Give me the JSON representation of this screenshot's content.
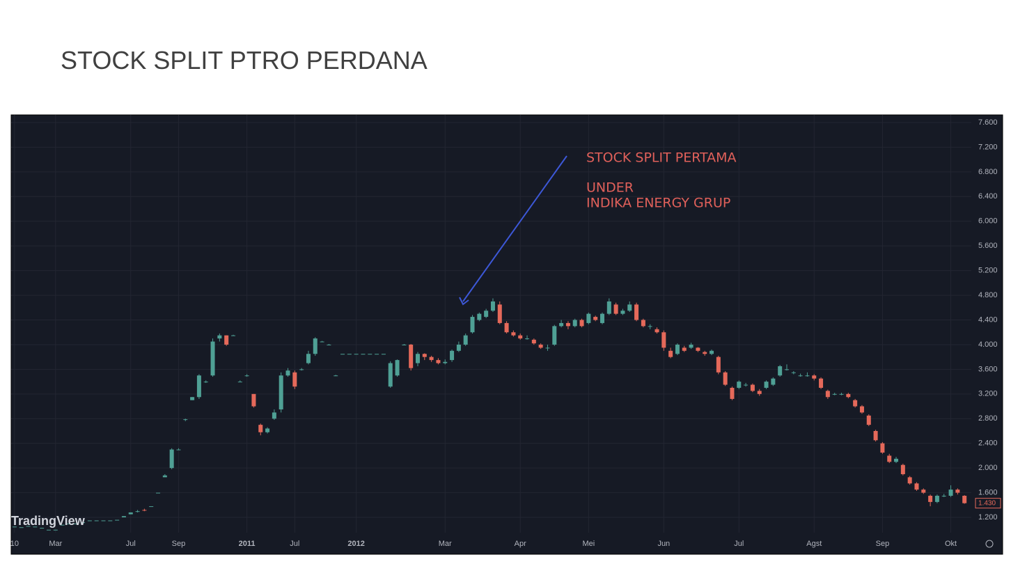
{
  "slide": {
    "title": "STOCK SPLIT PTRO PERDANA"
  },
  "chart_data": {
    "type": "candlestick",
    "watermark": "TradingView",
    "annotations": [
      "STOCK SPLIT PERTAMA",
      "UNDER",
      "INDIKA ENERGY GRUP"
    ],
    "up_color": "#4fa095",
    "down_color": "#e5695a",
    "grid": true,
    "xlim": [
      -0.5,
      140
    ],
    "xticks": [
      {
        "value": 0,
        "label": "10"
      },
      {
        "value": 6,
        "label": "Mar"
      },
      {
        "value": 17,
        "label": "Jul"
      },
      {
        "value": 24,
        "label": "Sep"
      },
      {
        "value": 34,
        "label": "2011"
      },
      {
        "value": 41,
        "label": "Jul"
      },
      {
        "value": 50,
        "label": "2012"
      },
      {
        "value": 63,
        "label": "Mar"
      },
      {
        "value": 74,
        "label": "Apr"
      },
      {
        "value": 84,
        "label": "Mei"
      },
      {
        "value": 95,
        "label": "Jun"
      },
      {
        "value": 106,
        "label": "Jul"
      },
      {
        "value": 117,
        "label": "Agst"
      },
      {
        "value": 127,
        "label": "Sep"
      },
      {
        "value": 137,
        "label": "Okt"
      }
    ],
    "ylim": [
      952,
      7724
    ],
    "yticks": [
      {
        "value": 1200,
        "label": "1.200"
      },
      {
        "value": 1600,
        "label": "1.600"
      },
      {
        "value": 2000,
        "label": "2.000"
      },
      {
        "value": 2400,
        "label": "2.400"
      },
      {
        "value": 2800,
        "label": "2.800"
      },
      {
        "value": 3200,
        "label": "3.200"
      },
      {
        "value": 3600,
        "label": "3.600"
      },
      {
        "value": 4000,
        "label": "4.000"
      },
      {
        "value": 4400,
        "label": "4.400"
      },
      {
        "value": 4800,
        "label": "4.800"
      },
      {
        "value": 5200,
        "label": "5.200"
      },
      {
        "value": 5600,
        "label": "5.600"
      },
      {
        "value": 6000,
        "label": "6.000"
      },
      {
        "value": 6400,
        "label": "6.400"
      },
      {
        "value": 6800,
        "label": "6.800"
      },
      {
        "value": 7200,
        "label": "7.200"
      },
      {
        "value": 7600,
        "label": "7.600"
      }
    ],
    "last_price": {
      "value": 1430,
      "label": "1.430"
    },
    "open": [
      1050,
      1040,
      1060,
      1050,
      1030,
      1000,
      1000,
      1080,
      1100,
      1100,
      1120,
      1150,
      1150,
      1150,
      1150,
      1160,
      1200,
      1250,
      1300,
      1320,
      1380,
      1600,
      1850,
      2000,
      2300,
      2780,
      3100,
      3150,
      3400,
      3500,
      4100,
      4150,
      4150,
      3400,
      3500,
      3200,
      2700,
      2580,
      2800,
      2950,
      3500,
      3550,
      3600,
      3700,
      3850,
      4050,
      4000,
      3500,
      3850,
      3850,
      3850,
      3850,
      3850,
      3850,
      3850,
      3320,
      3500,
      4000,
      4000,
      3700,
      3850,
      3800,
      3750,
      3700,
      3750,
      3900,
      4000,
      4200,
      4400,
      4450,
      4550,
      4650,
      4350,
      4200,
      4150,
      4100,
      4080,
      4000,
      3950,
      4000,
      4300,
      4350,
      4300,
      4400,
      4350,
      4450,
      4350,
      4500,
      4650,
      4500,
      4550,
      4650,
      4400,
      4300,
      4250,
      4200,
      3900,
      3850,
      3950,
      3950,
      3950,
      3880,
      3850,
      3800,
      3550,
      3300,
      3300,
      3350,
      3350,
      3250,
      3300,
      3350,
      3500,
      3600,
      3550,
      3500,
      3500,
      3500,
      3450,
      3250,
      3200,
      3200,
      3200,
      3100,
      3000,
      2850,
      2600,
      2400,
      2200,
      2100,
      2050,
      1850,
      1750,
      1650,
      1550,
      1450,
      1550,
      1550,
      1650,
      1550
    ],
    "high": [
      1050,
      1040,
      1060,
      1050,
      1030,
      1000,
      1000,
      1080,
      1100,
      1100,
      1120,
      1150,
      1150,
      1150,
      1150,
      1160,
      1220,
      1280,
      1320,
      1340,
      1380,
      1600,
      1900,
      2320,
      2320,
      2800,
      3150,
      3520,
      3420,
      4100,
      4180,
      4150,
      4160,
      3420,
      3520,
      3200,
      2720,
      2660,
      2950,
      3550,
      3620,
      3580,
      3620,
      3900,
      4120,
      4060,
      4010,
      3510,
      3850,
      3850,
      3850,
      3850,
      3850,
      3850,
      3850,
      3730,
      3760,
      4010,
      4010,
      3880,
      3860,
      3820,
      3780,
      3760,
      3920,
      4050,
      4180,
      4480,
      4520,
      4580,
      4750,
      4700,
      4380,
      4230,
      4180,
      4150,
      4100,
      4020,
      4000,
      4320,
      4400,
      4380,
      4420,
      4420,
      4520,
      4470,
      4520,
      4750,
      4680,
      4580,
      4700,
      4680,
      4420,
      4330,
      4280,
      4230,
      3950,
      4020,
      3980,
      4030,
      3960,
      3900,
      3920,
      3820,
      3570,
      3320,
      3420,
      3380,
      3370,
      3280,
      3420,
      3470,
      3670,
      3680,
      3570,
      3530,
      3550,
      3520,
      3470,
      3270,
      3220,
      3220,
      3220,
      3120,
      3020,
      2870,
      2620,
      2420,
      2230,
      2180,
      2070,
      1870,
      1770,
      1670,
      1570,
      1570,
      1580,
      1720,
      1670,
      1560
    ],
    "low": [
      1050,
      1040,
      1060,
      1050,
      1030,
      1000,
      1000,
      1080,
      1100,
      1100,
      1120,
      1150,
      1150,
      1150,
      1150,
      1160,
      1200,
      1250,
      1280,
      1300,
      1380,
      1600,
      1850,
      1980,
      2290,
      2760,
      3100,
      3120,
      3380,
      3480,
      4050,
      3980,
      4140,
      3390,
      3480,
      2980,
      2530,
      2560,
      2780,
      2900,
      3480,
      3280,
      3580,
      3680,
      3820,
      4040,
      3990,
      3490,
      3850,
      3850,
      3850,
      3850,
      3850,
      3850,
      3850,
      3300,
      3480,
      3990,
      3580,
      3650,
      3750,
      3720,
      3680,
      3680,
      3720,
      3880,
      3980,
      4180,
      4380,
      4430,
      4530,
      4330,
      4180,
      4130,
      4080,
      4080,
      4000,
      3930,
      3900,
      3980,
      4280,
      4250,
      4280,
      4280,
      4330,
      4380,
      4330,
      4480,
      4480,
      4480,
      4530,
      4380,
      4280,
      4250,
      4180,
      3900,
      3780,
      3830,
      3880,
      3930,
      3880,
      3820,
      3830,
      3520,
      3330,
      3100,
      3280,
      3320,
      3230,
      3170,
      3280,
      3330,
      3480,
      3580,
      3520,
      3480,
      3480,
      3420,
      3280,
      3120,
      3180,
      3180,
      3130,
      2980,
      2880,
      2680,
      2430,
      2230,
      2080,
      2080,
      1880,
      1730,
      1630,
      1580,
      1380,
      1430,
      1530,
      1530,
      1570,
      1420
    ],
    "close": [
      1050,
      1040,
      1060,
      1050,
      1030,
      1000,
      1000,
      1080,
      1100,
      1100,
      1120,
      1150,
      1150,
      1150,
      1150,
      1160,
      1220,
      1280,
      1300,
      1310,
      1380,
      1600,
      1880,
      2300,
      2300,
      2790,
      3150,
      3500,
      3400,
      4050,
      4150,
      4000,
      4150,
      3400,
      3500,
      3000,
      2580,
      2640,
      2900,
      3500,
      3580,
      3320,
      3600,
      3850,
      4100,
      4050,
      4000,
      3500,
      3850,
      3850,
      3850,
      3850,
      3850,
      3850,
      3850,
      3700,
      3750,
      4000,
      3620,
      3850,
      3800,
      3750,
      3700,
      3720,
      3900,
      4000,
      4150,
      4450,
      4500,
      4550,
      4700,
      4350,
      4200,
      4150,
      4100,
      4100,
      4020,
      3950,
      3950,
      4300,
      4350,
      4300,
      4400,
      4300,
      4500,
      4400,
      4500,
      4700,
      4500,
      4550,
      4650,
      4400,
      4300,
      4300,
      4200,
      3950,
      3800,
      4000,
      3900,
      4000,
      3900,
      3850,
      3900,
      3550,
      3350,
      3120,
      3400,
      3350,
      3250,
      3200,
      3400,
      3450,
      3650,
      3600,
      3550,
      3500,
      3500,
      3450,
      3300,
      3150,
      3200,
      3200,
      3150,
      3000,
      2900,
      2700,
      2450,
      2250,
      2100,
      2150,
      1900,
      1750,
      1650,
      1600,
      1450,
      1550,
      1550,
      1650,
      1600,
      1430
    ]
  }
}
